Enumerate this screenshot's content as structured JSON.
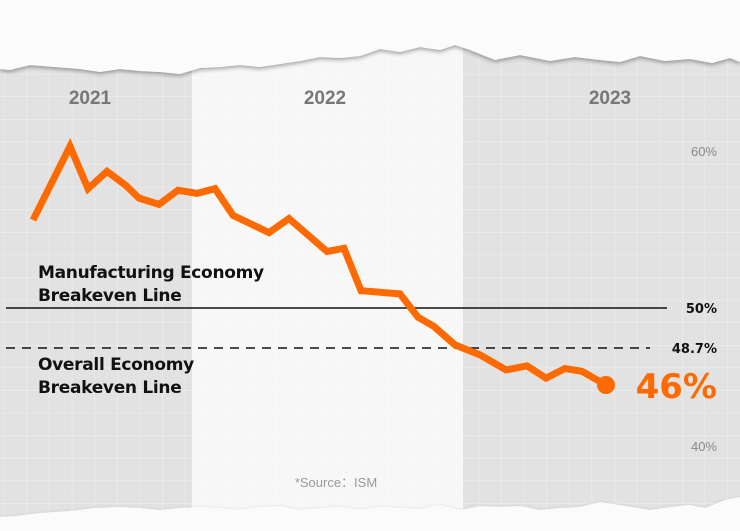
{
  "chart_data": {
    "type": "line",
    "title": "",
    "xlabel": "",
    "ylabel": "",
    "year_bands": [
      "2021",
      "2022",
      "2023"
    ],
    "y_ticks": [
      "60%",
      "40%"
    ],
    "series": [
      {
        "values": [
          55.6,
          60.3,
          57.6,
          58.7,
          57.8,
          57.0,
          56.6,
          57.5,
          57.3,
          57.6,
          55.9,
          54.8,
          55.7,
          53.6,
          53.8,
          51.1,
          50.9,
          49.7,
          49.4,
          48.8,
          48.2,
          47.1,
          47.4,
          46.5,
          47.2,
          47.0,
          46.0
        ],
        "color": "#ff6a00"
      }
    ],
    "last_value_label": "46%",
    "reference_lines": [
      {
        "value": 50,
        "label": "50%",
        "style": "solid",
        "annotation": [
          "Manufacturing Economy",
          "Breakeven Line"
        ]
      },
      {
        "value": 48.7,
        "label": "48.7%",
        "style": "dashed",
        "annotation": [
          "Overall Economy",
          "Breakeven Line"
        ]
      }
    ],
    "source": "*Source：ISM",
    "grid": true,
    "colors": {
      "line": "#ff6a00",
      "band_dark": "#e2e2e2",
      "band_light": "#f7f7f7",
      "year_text": "#777777"
    }
  }
}
